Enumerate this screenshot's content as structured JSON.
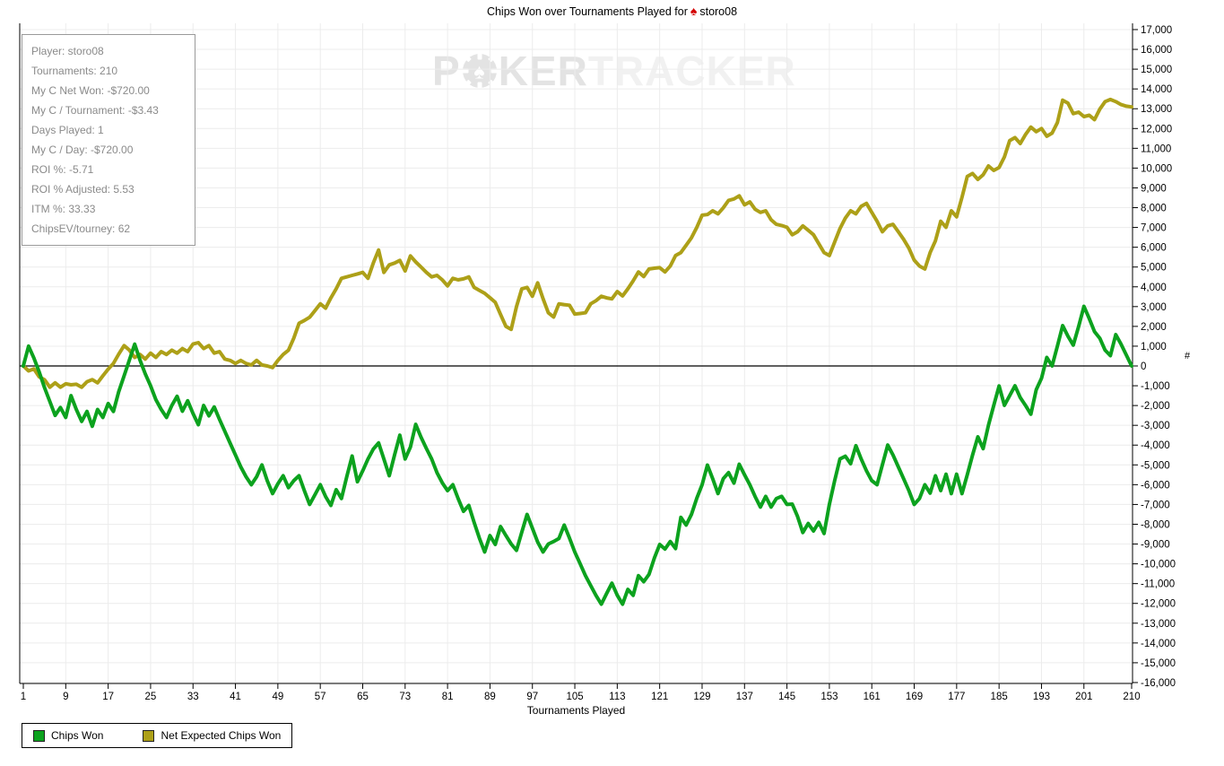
{
  "title": {
    "prefix": "Chips Won over Tournaments Played for",
    "icon_glyph": "♠",
    "player": "storo08"
  },
  "watermark": {
    "bold_prefix": "P",
    "bold_suffix": "KER",
    "light": "TRACKER"
  },
  "info_box": {
    "lines": [
      "Player: storo08",
      "Tournaments: 210",
      "My C Net Won: -$720.00",
      "My C / Tournament: -$3.43",
      "Days Played: 1",
      "My C / Day: -$720.00",
      "ROI %: -5.71",
      "ROI % Adjusted: 5.53",
      "ITM %: 33.33",
      "ChipsEV/tourney: 62"
    ]
  },
  "chart_data": {
    "type": "line",
    "title": "Chips Won over Tournaments Played for storo08",
    "xlabel": "Tournaments Played",
    "ylabel": "",
    "axis_marker": "#",
    "xlim": [
      1,
      210
    ],
    "ylim": [
      -16000,
      17000
    ],
    "y_tick_step": 1000,
    "x_ticks": [
      1,
      9,
      17,
      25,
      33,
      41,
      49,
      57,
      65,
      73,
      81,
      89,
      97,
      105,
      113,
      121,
      129,
      137,
      145,
      153,
      161,
      169,
      177,
      185,
      193,
      201,
      210
    ],
    "grid": true,
    "legend_position": "bottom-left",
    "colors": {
      "grid": "#ececec",
      "axis": "#000000",
      "zero_line": "#000000"
    },
    "x_start": 1,
    "series": [
      {
        "name": "Chips Won",
        "color": "#0ca21e",
        "values": [
          0,
          1000,
          400,
          -300,
          -1100,
          -1800,
          -2500,
          -2100,
          -2600,
          -1500,
          -2200,
          -2800,
          -2300,
          -3050,
          -2200,
          -2600,
          -1900,
          -2300,
          -1300,
          -500,
          300,
          1100,
          300,
          -400,
          -1000,
          -1700,
          -2200,
          -2600,
          -2000,
          -1530,
          -2290,
          -1760,
          -2400,
          -2970,
          -2000,
          -2520,
          -2070,
          -2700,
          -3300,
          -3900,
          -4500,
          -5100,
          -5600,
          -6000,
          -5600,
          -5000,
          -5800,
          -6450,
          -5950,
          -5550,
          -6150,
          -5800,
          -5550,
          -6300,
          -7000,
          -6500,
          -6000,
          -6600,
          -7050,
          -6250,
          -6700,
          -5600,
          -4550,
          -5850,
          -5300,
          -4700,
          -4200,
          -3890,
          -4700,
          -5550,
          -4500,
          -3500,
          -4700,
          -4100,
          -2950,
          -3600,
          -4170,
          -4700,
          -5390,
          -5900,
          -6300,
          -6000,
          -6700,
          -7350,
          -7050,
          -7900,
          -8700,
          -9400,
          -8570,
          -9020,
          -8115,
          -8570,
          -9000,
          -9320,
          -8400,
          -7500,
          -8200,
          -8900,
          -9400,
          -9000,
          -8870,
          -8720,
          -8040,
          -8700,
          -9400,
          -10000,
          -10600,
          -11100,
          -11600,
          -12040,
          -11500,
          -10980,
          -11590,
          -12040,
          -11290,
          -11590,
          -10600,
          -10900,
          -10530,
          -9700,
          -9020,
          -9250,
          -8870,
          -9230,
          -7650,
          -8040,
          -7500,
          -6680,
          -6000,
          -5010,
          -5700,
          -6450,
          -5700,
          -5390,
          -5920,
          -4970,
          -5500,
          -6000,
          -6600,
          -7130,
          -6590,
          -7130,
          -6700,
          -6590,
          -7000,
          -6980,
          -7600,
          -8420,
          -7960,
          -8340,
          -7900,
          -8470,
          -7000,
          -5800,
          -4700,
          -4560,
          -4940,
          -4030,
          -4700,
          -5300,
          -5800,
          -6000,
          -5000,
          -4000,
          -4500,
          -5100,
          -5700,
          -6300,
          -7000,
          -6700,
          -6000,
          -6430,
          -5550,
          -6300,
          -5470,
          -6450,
          -5470,
          -6450,
          -5500,
          -4500,
          -3580,
          -4180,
          -3000,
          -2000,
          -1010,
          -1990,
          -1500,
          -1000,
          -1600,
          -2000,
          -2440,
          -1200,
          -620,
          430,
          0,
          1000,
          2040,
          1500,
          1050,
          2000,
          3010,
          2400,
          1730,
          1400,
          800,
          520,
          1580,
          1100,
          550,
          0
        ]
      },
      {
        "name": "Net Expected Chips Won",
        "color": "#ada018",
        "values": [
          0,
          -250,
          -150,
          -550,
          -700,
          -1075,
          -850,
          -1075,
          -900,
          -950,
          -925,
          -1075,
          -800,
          -690,
          -850,
          -500,
          -165,
          125,
          600,
          1030,
          800,
          430,
          580,
          350,
          650,
          430,
          725,
          580,
          800,
          650,
          880,
          725,
          1105,
          1180,
          880,
          1030,
          650,
          725,
          350,
          280,
          125,
          280,
          125,
          50,
          280,
          50,
          0,
          -80,
          280,
          580,
          800,
          1400,
          2160,
          2300,
          2460,
          2800,
          3140,
          2920,
          3440,
          3900,
          4430,
          4500,
          4580,
          4650,
          4730,
          4430,
          5200,
          5860,
          4730,
          5110,
          5200,
          5335,
          4800,
          5560,
          5260,
          5000,
          4730,
          4500,
          4580,
          4350,
          4050,
          4430,
          4350,
          4400,
          4500,
          3970,
          3820,
          3670,
          3450,
          3220,
          2600,
          2000,
          1850,
          3000,
          3900,
          3970,
          3520,
          4200,
          3400,
          2690,
          2470,
          3140,
          3100,
          3070,
          2620,
          2650,
          2690,
          3140,
          3300,
          3520,
          3440,
          3390,
          3760,
          3540,
          3900,
          4300,
          4750,
          4520,
          4900,
          4940,
          4970,
          4750,
          5050,
          5580,
          5730,
          6100,
          6480,
          7010,
          7620,
          7650,
          7840,
          7690,
          7990,
          8370,
          8440,
          8600,
          8140,
          8290,
          7920,
          7760,
          7840,
          7390,
          7160,
          7100,
          7010,
          6630,
          6780,
          7080,
          6860,
          6630,
          6180,
          5730,
          5580,
          6260,
          6940,
          7470,
          7840,
          7690,
          8070,
          8220,
          7760,
          7310,
          6780,
          7080,
          7160,
          6780,
          6400,
          5950,
          5350,
          5050,
          4900,
          5730,
          6330,
          7310,
          7010,
          7840,
          7540,
          8520,
          9580,
          9730,
          9430,
          9660,
          10110,
          9880,
          10030,
          10560,
          11390,
          11540,
          11240,
          11700,
          12070,
          11840,
          12000,
          11610,
          11770,
          12300,
          13430,
          13280,
          12750,
          12830,
          12600,
          12670,
          12450,
          12980,
          13360,
          13470,
          13360,
          13210,
          13130,
          13090
        ]
      }
    ]
  }
}
